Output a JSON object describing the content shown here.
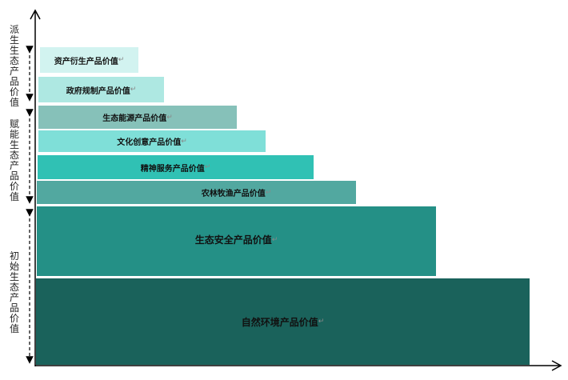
{
  "layers": [
    {
      "label": "资产衍生产品价值",
      "color": "#d2f3f0"
    },
    {
      "label": "政府规制产品价值",
      "color": "#aee8e2"
    },
    {
      "label": "生态能源产品价值",
      "color": "#86c1b9"
    },
    {
      "label": "文化创意产品价值",
      "color": "#7fdfd8"
    },
    {
      "label": "精神服务产品价值",
      "color": "#30c1b4"
    },
    {
      "label": "农林牧渔产品价值",
      "color": "#52a8a0"
    },
    {
      "label": "生态安全产品价值",
      "color": "#249086"
    },
    {
      "label": "自然环境产品价值",
      "color": "#1a625b"
    }
  ],
  "groups": [
    {
      "label": "派生生态产品价值"
    },
    {
      "label": "赋能生态产品价值"
    },
    {
      "label": "初始生态产品价值"
    }
  ],
  "return_mark": "↵"
}
